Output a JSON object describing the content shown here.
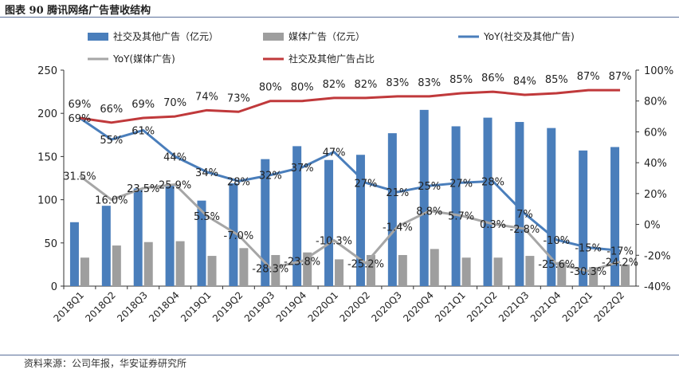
{
  "figure_title": "图表 90  腾讯网络广告营收结构",
  "source": "资料来源：公司年报，华安证券研究所",
  "colors": {
    "social_bar": "#4a7ebb",
    "media_bar": "#9e9e9e",
    "social_yoy": "#4a7ebb",
    "media_yoy": "#a6a6a6",
    "share": "#c0393b",
    "axis": "#333333",
    "label": "#222222"
  },
  "chart_data": {
    "type": "bar",
    "categories": [
      "2018Q1",
      "2018Q2",
      "2018Q3",
      "2018Q4",
      "2019Q1",
      "2019Q2",
      "2019Q3",
      "2019Q4",
      "2020Q1",
      "2020Q2",
      "2020Q3",
      "2020Q4",
      "2021Q1",
      "2021Q2",
      "2021Q3",
      "2021Q4",
      "2022Q1",
      "2022Q2"
    ],
    "ylim_left": [
      0,
      250
    ],
    "yticks_left": [
      "0",
      "50",
      "100",
      "150",
      "200",
      "250"
    ],
    "ylim_right": [
      -40,
      100
    ],
    "yticks_right": [
      "-40%",
      "-20%",
      "0%",
      "20%",
      "40%",
      "60%",
      "80%",
      "100%"
    ],
    "legend": [
      {
        "name": "社交及其他广告（亿元）",
        "kind": "bar",
        "color": "#4a7ebb"
      },
      {
        "name": "媒体广告（亿元）",
        "kind": "bar",
        "color": "#9e9e9e"
      },
      {
        "name": "YoY(社交及其他广告)",
        "kind": "line",
        "color": "#4a7ebb"
      },
      {
        "name": "YoY(媒体广告)",
        "kind": "line",
        "color": "#a6a6a6"
      },
      {
        "name": "社交及其他广告占比",
        "kind": "line",
        "color": "#c0393b"
      }
    ],
    "series": [
      {
        "name": "社交及其他广告（亿元）",
        "axis": "left",
        "values": [
          74,
          93,
          113,
          118,
          99,
          119,
          147,
          162,
          146,
          152,
          177,
          204,
          185,
          195,
          190,
          183,
          157,
          161
        ]
      },
      {
        "name": "媒体广告（亿元）",
        "axis": "left",
        "values": [
          33,
          47,
          51,
          52,
          35,
          44,
          36,
          39,
          31,
          36,
          36,
          43,
          33,
          33,
          35,
          28,
          22,
          25
        ]
      },
      {
        "name": "YoY(社交及其他广告)",
        "axis": "right",
        "values": [
          69,
          55,
          61,
          44,
          34,
          28,
          32,
          37,
          47,
          27,
          21,
          25,
          27,
          28,
          7,
          -10,
          -15,
          -17
        ],
        "labels": [
          "69%",
          "55%",
          "61%",
          "44%",
          "34%",
          "28%",
          "32%",
          "37%",
          "47%",
          "27%",
          "21%",
          "25%",
          "27%",
          "28%",
          "7%",
          "-10%",
          "-15%",
          "-17%"
        ]
      },
      {
        "name": "YoY(媒体广告)",
        "axis": "right",
        "values": [
          31.5,
          16.0,
          23.5,
          25.9,
          5.5,
          -7.0,
          -28.3,
          -23.8,
          -10.3,
          -25.2,
          -1.4,
          8.8,
          5.7,
          0.3,
          -2.8,
          -25.6,
          -30.3,
          -24.2
        ],
        "labels": [
          "31.5%",
          "16.0%",
          "23.5%",
          "25.9%",
          "5.5%",
          "-7.0%",
          "-28.3%",
          "-23.8%",
          "-10.3%",
          "-25.2%",
          "-1.4%",
          "8.8%",
          "5.7%",
          "0.3%",
          "-2.8%",
          "-25.6%",
          "-30.3%",
          "-24.2%"
        ]
      },
      {
        "name": "社交及其他广告占比",
        "axis": "right",
        "values": [
          69,
          66,
          69,
          70,
          74,
          73,
          80,
          80,
          82,
          82,
          83,
          83,
          85,
          86,
          84,
          85,
          87,
          87
        ],
        "labels": [
          "69%",
          "66%",
          "69%",
          "70%",
          "74%",
          "73%",
          "80%",
          "80%",
          "82%",
          "82%",
          "83%",
          "83%",
          "85%",
          "86%",
          "84%",
          "85%",
          "87%",
          "87%"
        ]
      }
    ]
  }
}
